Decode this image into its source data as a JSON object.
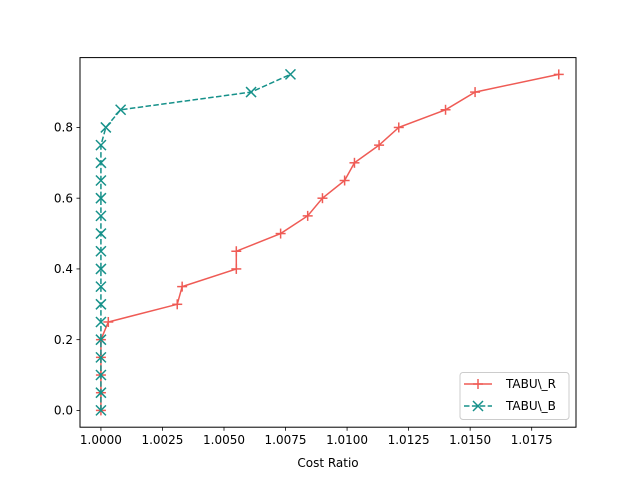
{
  "chart_data": {
    "type": "line",
    "title": "",
    "xlabel": "Cost Ratio",
    "ylabel": "",
    "xlim": [
      0.99915,
      1.0193
    ],
    "ylim": [
      -0.0475,
      0.9975
    ],
    "x_ticks": [
      {
        "value": 1.0,
        "label": "1.0000"
      },
      {
        "value": 1.0025,
        "label": "1.0025"
      },
      {
        "value": 1.005,
        "label": "1.0050"
      },
      {
        "value": 1.0075,
        "label": "1.0075"
      },
      {
        "value": 1.01,
        "label": "1.0100"
      },
      {
        "value": 1.0125,
        "label": "1.0125"
      },
      {
        "value": 1.015,
        "label": "1.0150"
      },
      {
        "value": 1.0175,
        "label": "1.0175"
      }
    ],
    "y_ticks": [
      {
        "value": 0.0,
        "label": "0.0"
      },
      {
        "value": 0.2,
        "label": "0.2"
      },
      {
        "value": 0.4,
        "label": "0.4"
      },
      {
        "value": 0.6,
        "label": "0.6"
      },
      {
        "value": 0.8,
        "label": "0.8"
      }
    ],
    "grid": false,
    "legend_position": "bottom-right",
    "series": [
      {
        "name": "TABU\\_R",
        "color": "#ef5b55",
        "marker": "plus",
        "linestyle": "solid",
        "x": [
          1.0,
          1.0,
          1.0,
          1.0,
          1.0,
          1.0003,
          1.0031,
          1.0033,
          1.0055,
          1.0055,
          1.0073,
          1.0084,
          1.009,
          1.0099,
          1.0103,
          1.0113,
          1.0121,
          1.014,
          1.0152,
          1.0186
        ],
        "y": [
          0.0,
          0.05,
          0.1,
          0.15,
          0.2,
          0.25,
          0.3,
          0.35,
          0.4,
          0.45,
          0.5,
          0.55,
          0.6,
          0.65,
          0.7,
          0.75,
          0.8,
          0.85,
          0.9,
          0.95
        ]
      },
      {
        "name": "TABU\\_B",
        "color": "#16918a",
        "marker": "x",
        "linestyle": "dashed",
        "x": [
          1.0,
          1.0,
          1.0,
          1.0,
          1.0,
          1.0,
          1.0,
          1.0,
          1.0,
          1.0,
          1.0,
          1.0,
          1.0,
          1.0,
          1.0,
          1.0,
          1.0002,
          1.0008,
          1.0061,
          1.0077
        ],
        "y": [
          0.0,
          0.05,
          0.1,
          0.15,
          0.2,
          0.25,
          0.3,
          0.35,
          0.4,
          0.45,
          0.5,
          0.55,
          0.6,
          0.65,
          0.7,
          0.75,
          0.8,
          0.85,
          0.9,
          0.95
        ]
      }
    ]
  }
}
